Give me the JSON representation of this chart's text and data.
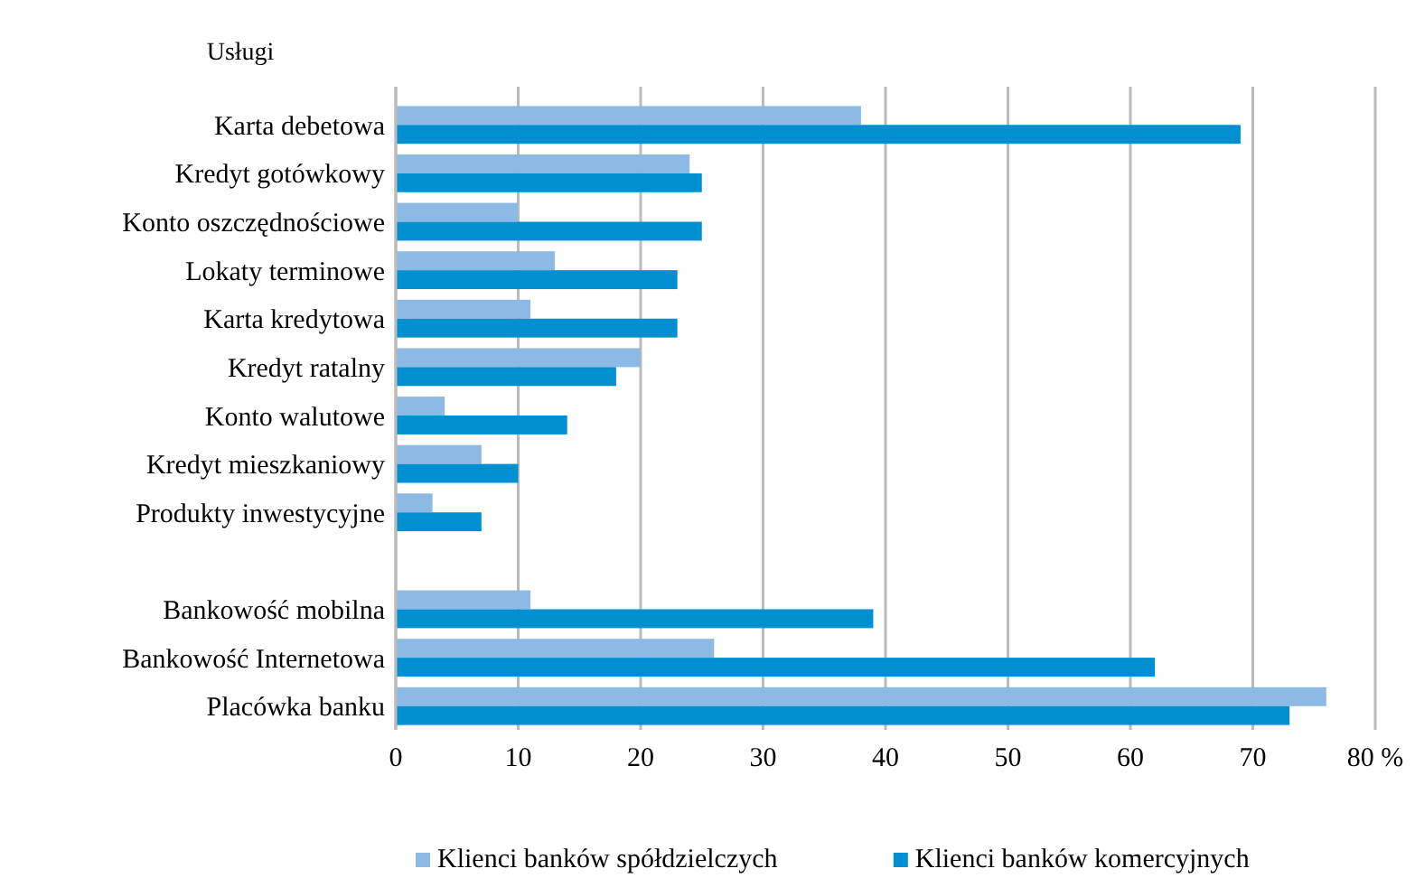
{
  "chart_data": {
    "type": "bar",
    "orientation": "horizontal",
    "annotations": [
      "Usługi"
    ],
    "categories": [
      "Karta debetowa",
      "Kredyt gotówkowy",
      "Konto oszczędnościowe",
      "Lokaty terminowe",
      "Karta kredytowa",
      "Kredyt ratalny",
      "Konto walutowe",
      "Kredyt mieszkaniowy",
      "Produkty inwestycyjne",
      null,
      "Bankowość mobilna",
      "Bankowość Internetowa",
      "Placówka banku"
    ],
    "series": [
      {
        "name": "Klienci banków spółdzielczych",
        "color": "#8dbae4",
        "values": [
          38,
          24,
          10,
          13,
          11,
          20,
          4,
          7,
          3,
          null,
          11,
          26,
          76
        ]
      },
      {
        "name": "Klienci banków komercyjnych",
        "color": "#0090d2",
        "values": [
          69,
          25,
          25,
          23,
          23,
          18,
          14,
          10,
          7,
          null,
          39,
          62,
          73
        ]
      }
    ],
    "xlim": [
      0,
      80
    ],
    "xticks": [
      0,
      10,
      20,
      30,
      40,
      50,
      60,
      70,
      {
        "value": 80,
        "label": "80 %"
      }
    ],
    "grid": "x",
    "legend": "bottom"
  }
}
